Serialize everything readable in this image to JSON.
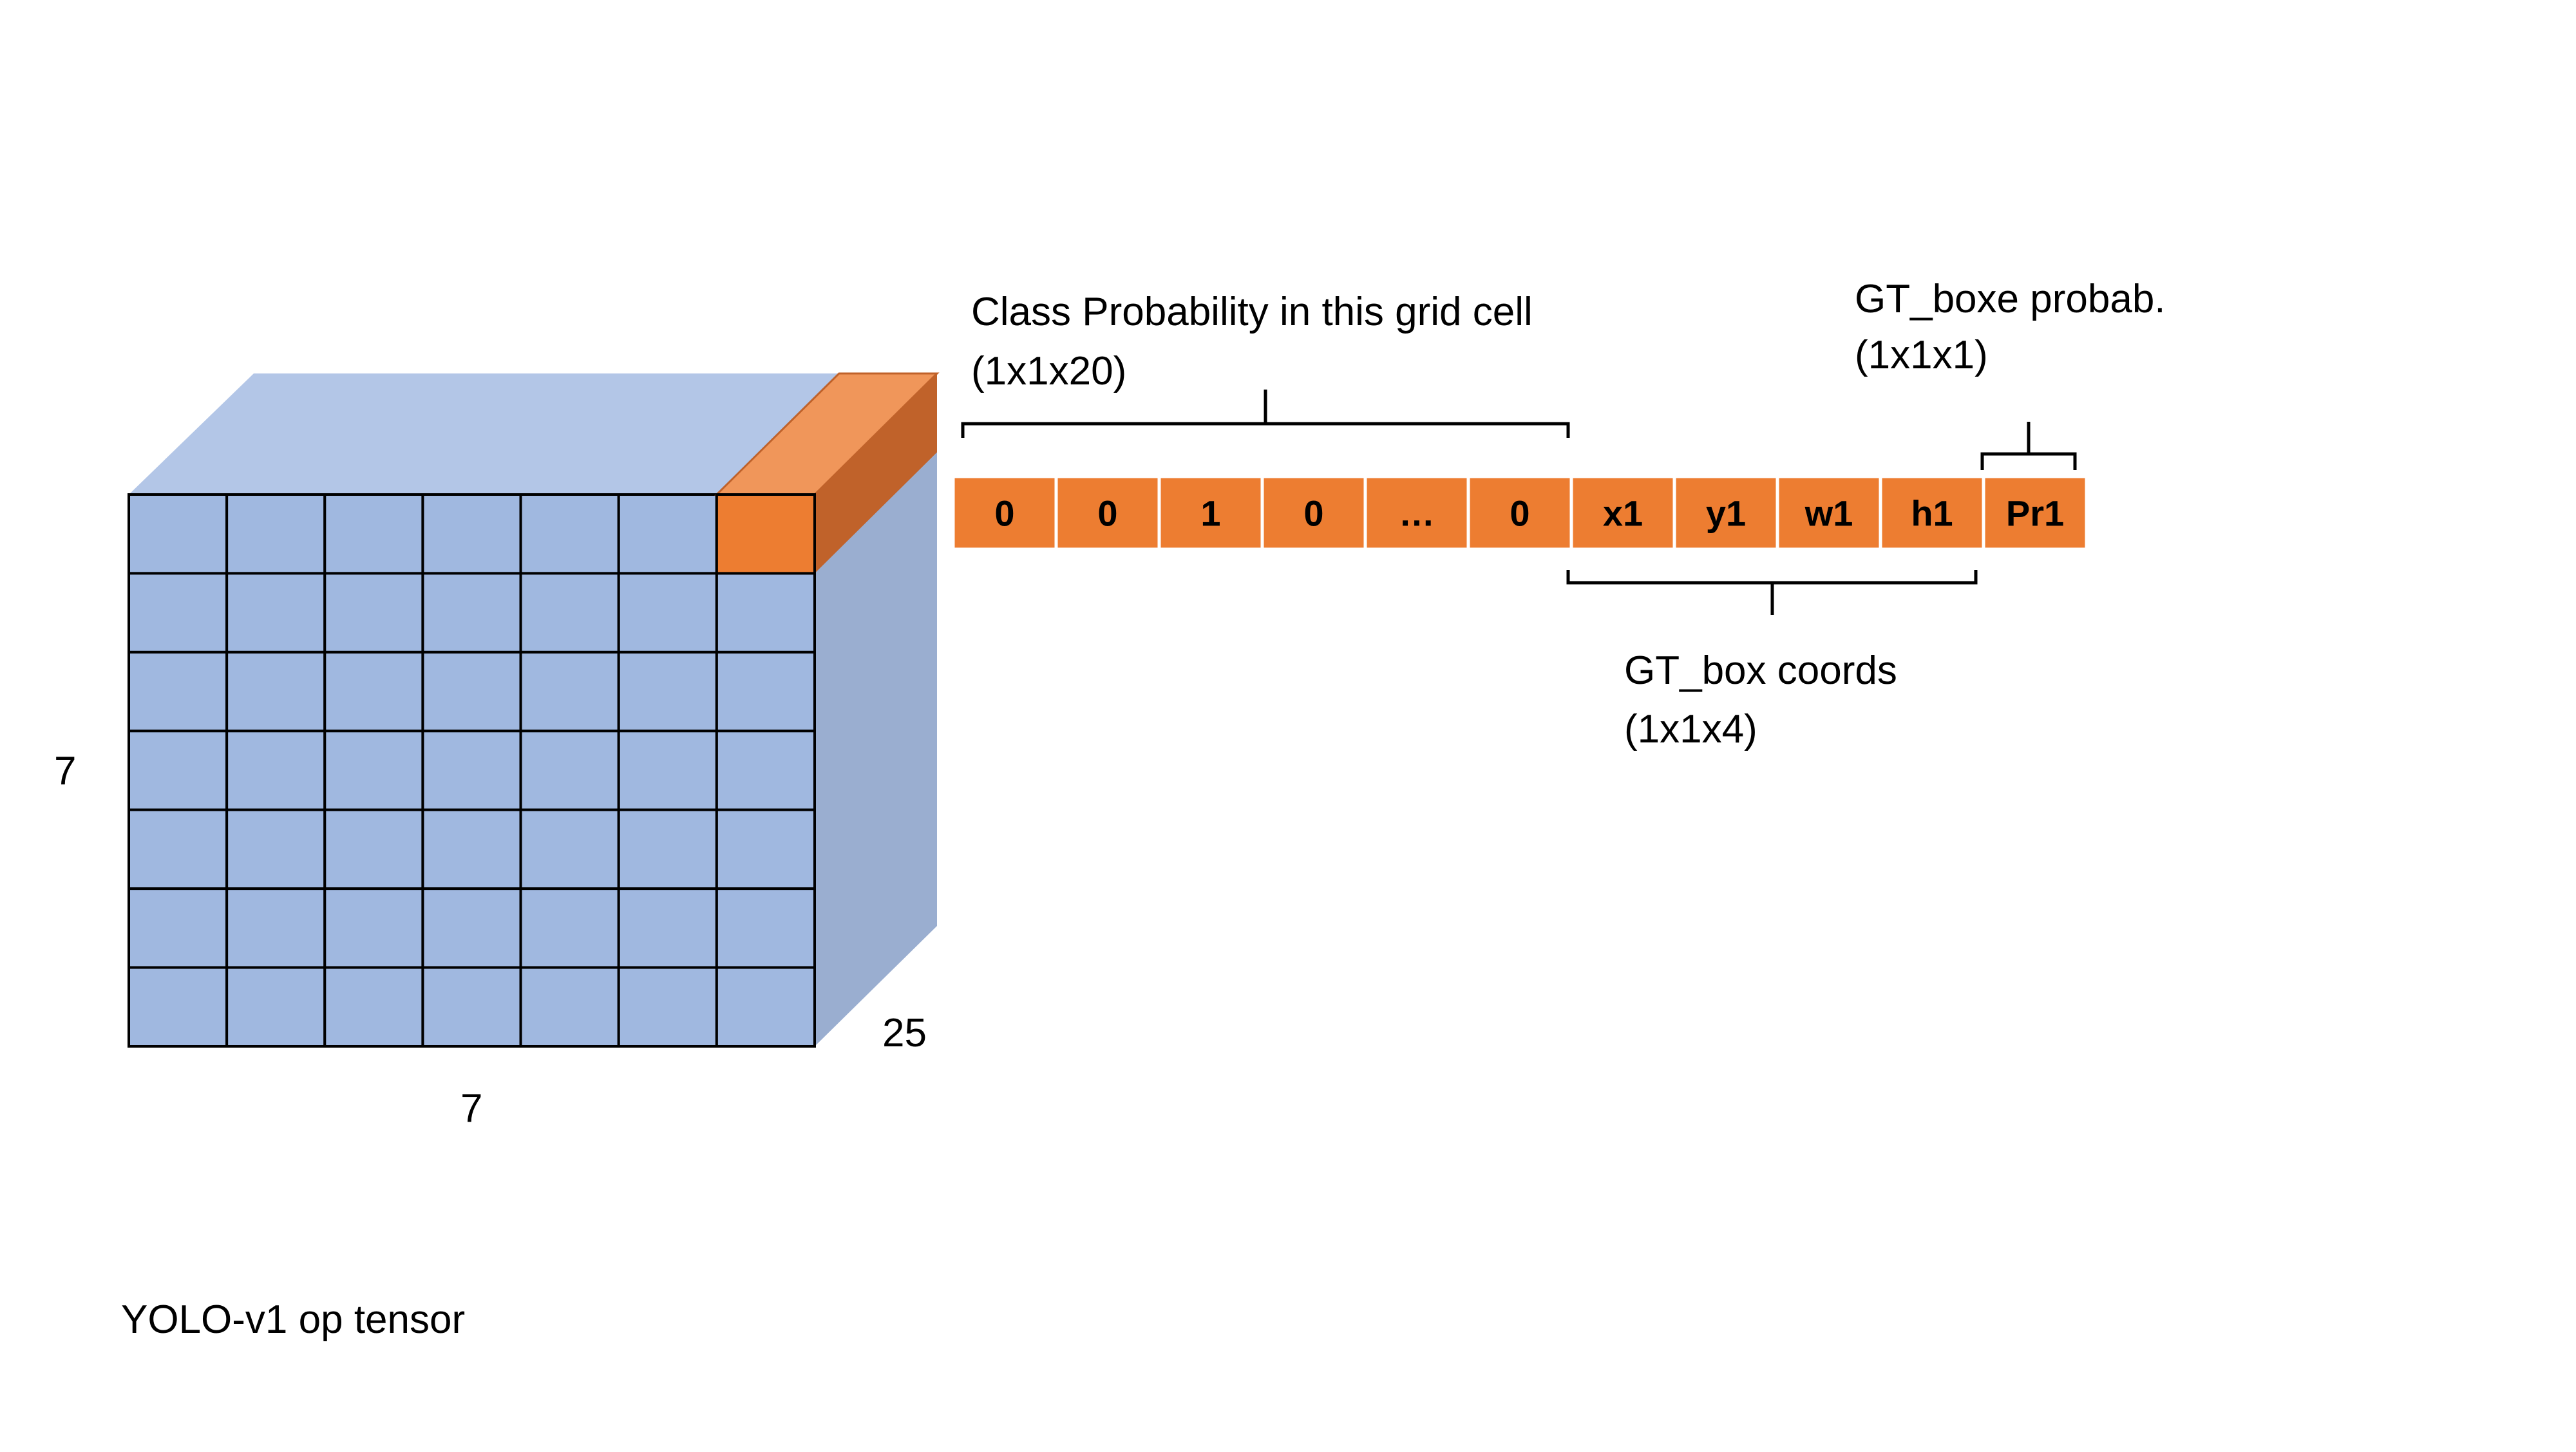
{
  "tensor": {
    "rows": 7,
    "cols": 7,
    "height_label": "7",
    "width_label": "7",
    "depth_label": "25",
    "caption": "YOLO-v1 op tensor",
    "highlighted_cell": {
      "row": 0,
      "col": 6
    }
  },
  "vector": {
    "cells": [
      "0",
      "0",
      "1",
      "0",
      "…",
      "0",
      "x1",
      "y1",
      "w1",
      "h1",
      "Pr1"
    ]
  },
  "annotations": {
    "class_prob": {
      "line1": "Class Probability in this grid cell",
      "line2": "(1x1x20)"
    },
    "gt_coords": {
      "line1": "GT_box coords",
      "line2": "(1x1x4)"
    },
    "gt_prob": {
      "line1": "GT_boxe probab.",
      "line2": "(1x1x1)"
    }
  },
  "colors": {
    "grid_face": "#a0b8e0",
    "top_face": "#b3c6e7",
    "side_face": "#9aaed0",
    "orange": "#ed7d31",
    "orange_top": "#f0965a",
    "orange_side": "#c0622a",
    "grid_line": "#000000",
    "cell_border": "#ffffff"
  }
}
